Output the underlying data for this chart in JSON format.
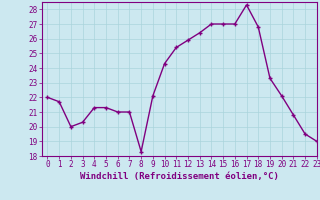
{
  "x": [
    0,
    1,
    2,
    3,
    4,
    5,
    6,
    7,
    8,
    9,
    10,
    11,
    12,
    13,
    14,
    15,
    16,
    17,
    18,
    19,
    20,
    21,
    22,
    23
  ],
  "y": [
    22,
    21.7,
    20.0,
    20.3,
    21.3,
    21.3,
    21.0,
    21.0,
    18.3,
    22.1,
    24.3,
    25.4,
    25.9,
    26.4,
    27.0,
    27.0,
    27.0,
    28.3,
    26.8,
    23.3,
    22.1,
    20.8,
    19.5,
    19.0
  ],
  "line_color": "#800080",
  "marker": "+",
  "marker_size": 3,
  "linewidth": 1.0,
  "markeredgewidth": 1.0,
  "xlabel": "Windchill (Refroidissement éolien,°C)",
  "xlabel_fontsize": 6.5,
  "xlim": [
    -0.5,
    23
  ],
  "ylim": [
    18,
    28.5
  ],
  "yticks": [
    18,
    19,
    20,
    21,
    22,
    23,
    24,
    25,
    26,
    27,
    28
  ],
  "xticks": [
    0,
    1,
    2,
    3,
    4,
    5,
    6,
    7,
    8,
    9,
    10,
    11,
    12,
    13,
    14,
    15,
    16,
    17,
    18,
    19,
    20,
    21,
    22,
    23
  ],
  "bg_color": "#cce8f0",
  "grid_color": "#aad4dc",
  "tick_color": "#800080",
  "axis_color": "#800080",
  "tick_fontsize": 5.5,
  "tick_label_color": "#800080"
}
